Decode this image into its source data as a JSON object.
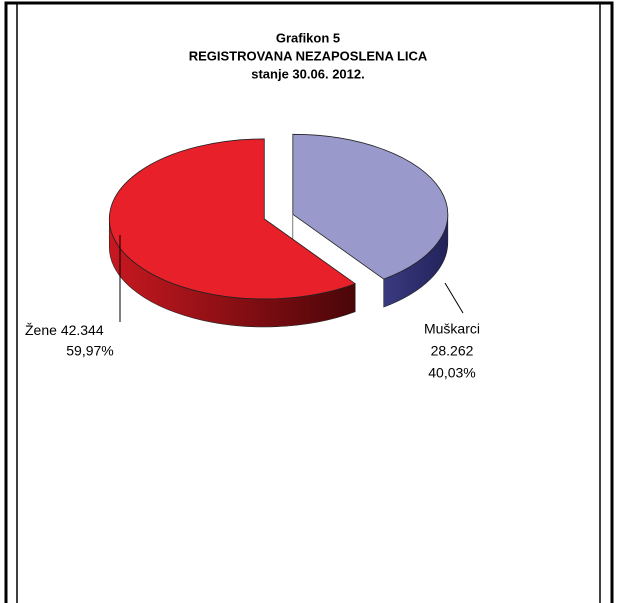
{
  "chart_data": {
    "type": "pie",
    "title": [
      "Grafikon 5",
      "REGISTROVANA NEZAPOSLENA LICA",
      "stanje 30.06. 2012."
    ],
    "categories": [
      "Žene",
      "Muškarci"
    ],
    "values": [
      42344,
      28262
    ],
    "value_labels": [
      "42.344",
      "28.262"
    ],
    "percents": [
      59.97,
      40.03
    ],
    "percent_labels": [
      "59,97%",
      "40,03%"
    ],
    "colors": [
      "#e8202a",
      "#9999cc"
    ]
  }
}
